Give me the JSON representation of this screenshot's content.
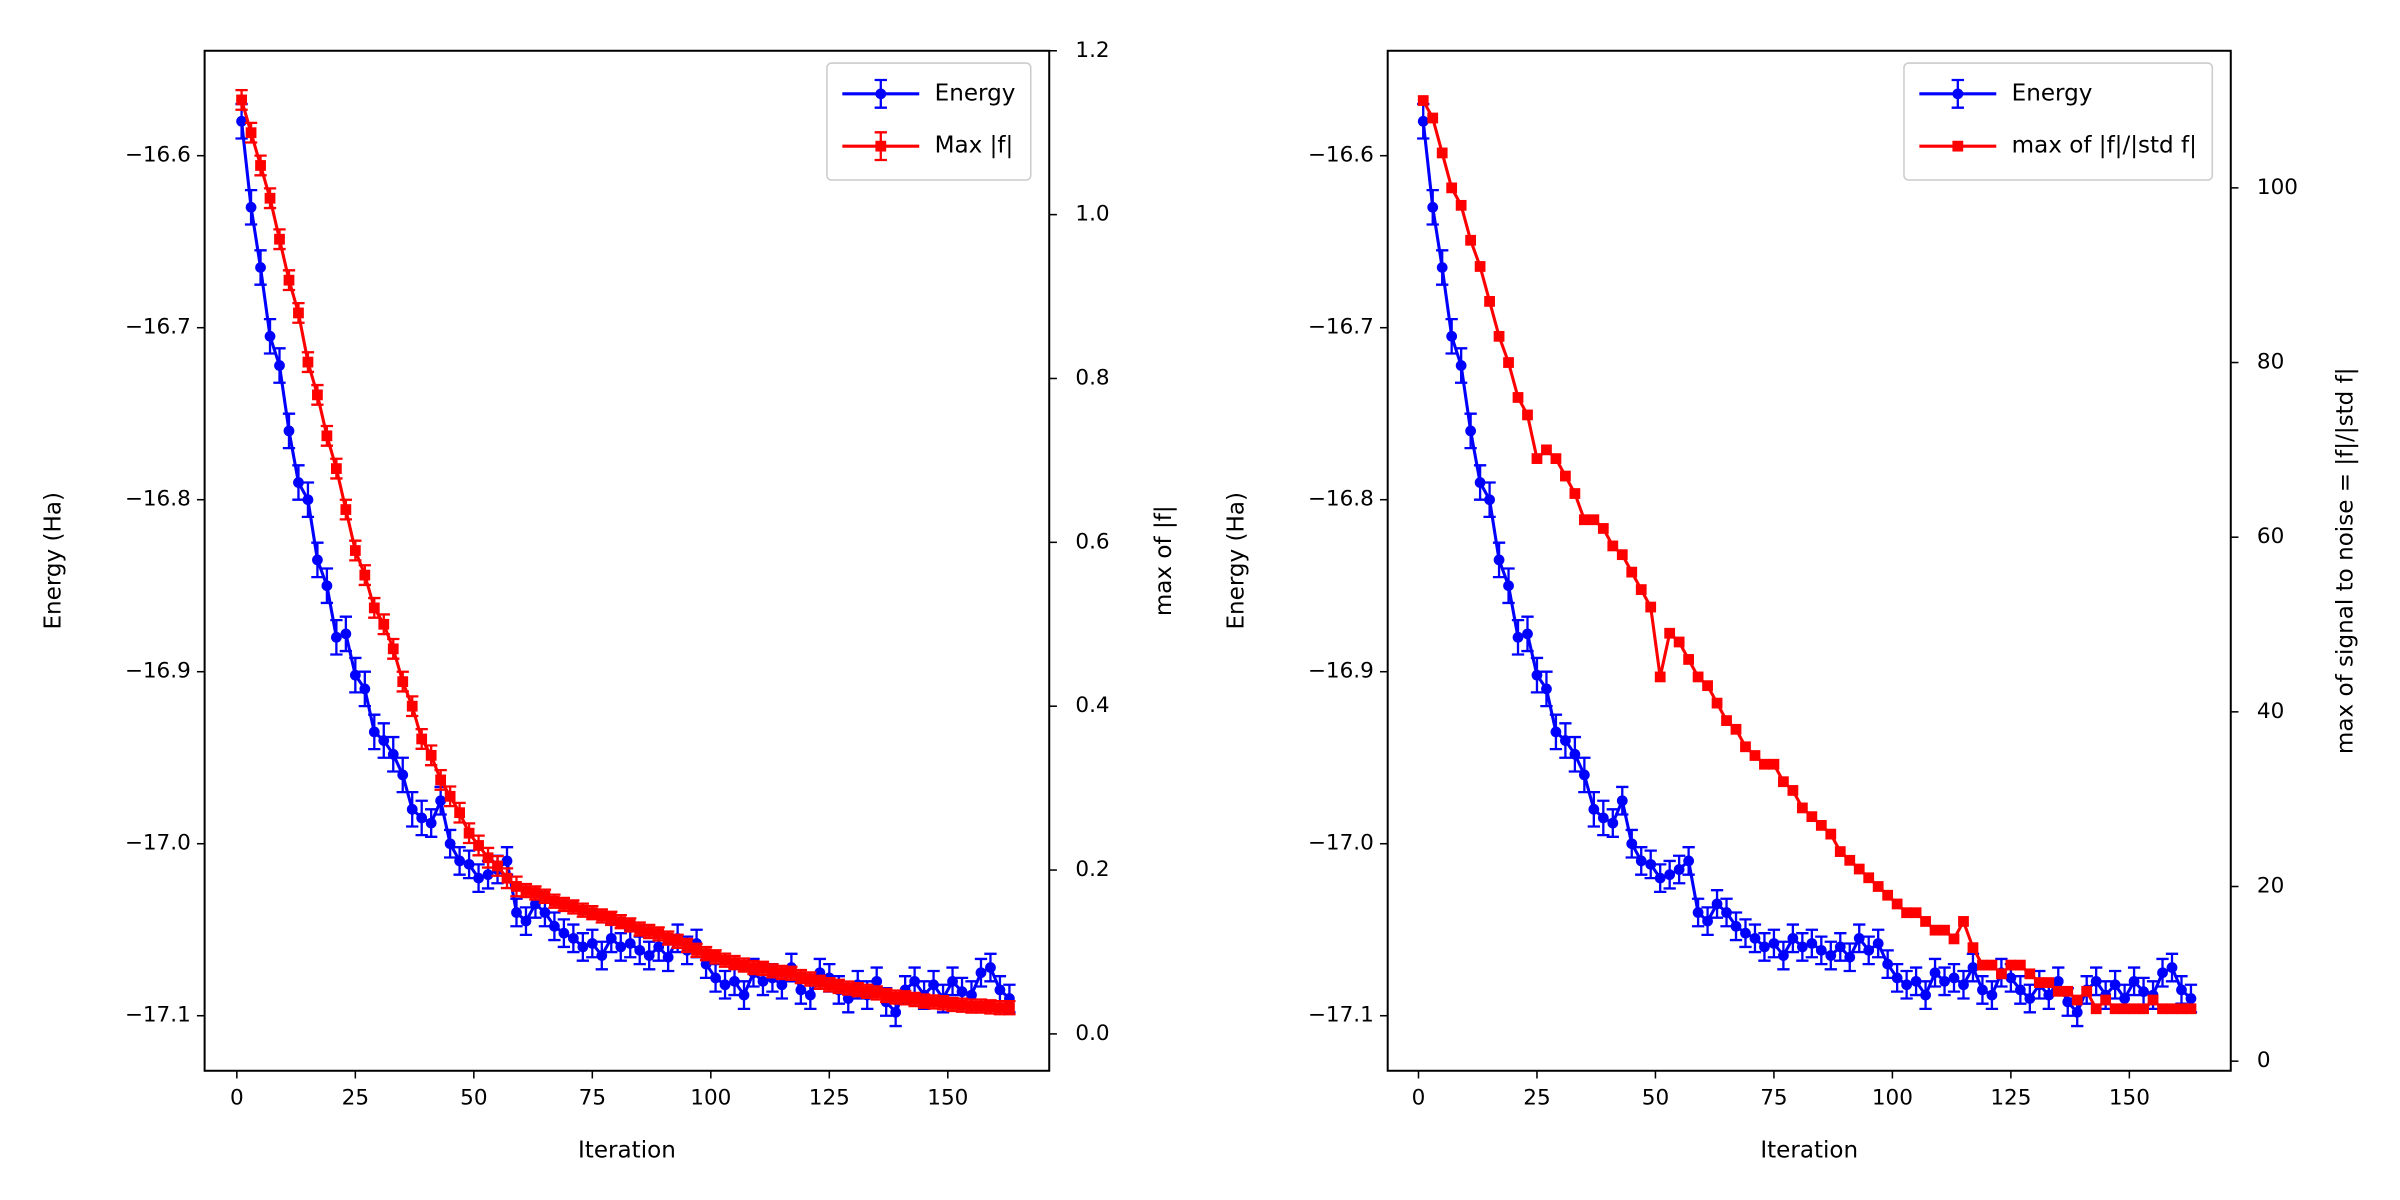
{
  "chart_data": [
    {
      "type": "line",
      "xlabel": "Iteration",
      "ylabel": "Energy (Ha)",
      "y2label": "max of |f|",
      "legend": "upper right",
      "xlim": [
        -6.8,
        171.4
      ],
      "xticks": [
        0,
        25,
        50,
        75,
        100,
        125,
        150
      ],
      "ylim": [
        -17.132,
        -16.539
      ],
      "yticks": [
        {
          "value": -17.1,
          "label": "−17.1"
        },
        {
          "value": -17.0,
          "label": "−17.0"
        },
        {
          "value": -16.9,
          "label": "−16.9"
        },
        {
          "value": -16.8,
          "label": "−16.8"
        },
        {
          "value": -16.7,
          "label": "−16.7"
        },
        {
          "value": -16.6,
          "label": "−16.6"
        }
      ],
      "y2lim": [
        -0.045,
        1.2
      ],
      "y2ticks": [
        {
          "value": 0,
          "label": "0.0"
        },
        0.2,
        0.4,
        0.6,
        0.8,
        {
          "value": 1,
          "label": "1.0"
        },
        1.2
      ],
      "x": [
        1,
        3,
        5,
        7,
        9,
        11,
        13,
        15,
        17,
        19,
        21,
        23,
        25,
        27,
        29,
        31,
        33,
        35,
        37,
        39,
        41,
        43,
        45,
        47,
        49,
        51,
        53,
        55,
        57,
        59,
        61,
        63,
        65,
        67,
        69,
        71,
        73,
        75,
        77,
        79,
        81,
        83,
        85,
        87,
        89,
        91,
        93,
        95,
        97,
        99,
        101,
        103,
        105,
        107,
        109,
        111,
        113,
        115,
        117,
        119,
        121,
        123,
        125,
        127,
        129,
        131,
        133,
        135,
        137,
        139,
        141,
        143,
        145,
        147,
        149,
        151,
        153,
        155,
        157,
        159,
        161,
        163
      ],
      "series": [
        {
          "name": "Energy",
          "color": "#0000ff",
          "marker": "circle",
          "axis": "y",
          "values": [
            -16.58,
            -16.63,
            -16.665,
            -16.705,
            -16.722,
            -16.76,
            -16.79,
            -16.8,
            -16.835,
            -16.85,
            -16.88,
            -16.878,
            -16.902,
            -16.91,
            -16.935,
            -16.94,
            -16.948,
            -16.96,
            -16.98,
            -16.985,
            -16.988,
            -16.975,
            -17.0,
            -17.01,
            -17.012,
            -17.02,
            -17.018,
            -17.015,
            -17.01,
            -17.04,
            -17.045,
            -17.035,
            -17.04,
            -17.048,
            -17.052,
            -17.055,
            -17.06,
            -17.058,
            -17.065,
            -17.055,
            -17.06,
            -17.058,
            -17.062,
            -17.065,
            -17.06,
            -17.066,
            -17.055,
            -17.062,
            -17.058,
            -17.07,
            -17.078,
            -17.082,
            -17.08,
            -17.088,
            -17.075,
            -17.08,
            -17.078,
            -17.082,
            -17.072,
            -17.085,
            -17.088,
            -17.075,
            -17.078,
            -17.085,
            -17.09,
            -17.082,
            -17.088,
            -17.08,
            -17.092,
            -17.098,
            -17.085,
            -17.08,
            -17.088,
            -17.082,
            -17.09,
            -17.08,
            -17.086,
            -17.088,
            -17.075,
            -17.072,
            -17.085,
            -17.09
          ],
          "errors": [
            0.01,
            0.01,
            0.01,
            0.01,
            0.01,
            0.01,
            0.01,
            0.01,
            0.01,
            0.01,
            0.01,
            0.01,
            0.01,
            0.01,
            0.01,
            0.01,
            0.01,
            0.01,
            0.01,
            0.01,
            0.008,
            0.008,
            0.008,
            0.008,
            0.008,
            0.008,
            0.008,
            0.008,
            0.008,
            0.008,
            0.008,
            0.008,
            0.008,
            0.008,
            0.008,
            0.008,
            0.008,
            0.008,
            0.008,
            0.008,
            0.008,
            0.008,
            0.008,
            0.008,
            0.008,
            0.008,
            0.008,
            0.008,
            0.008,
            0.008,
            0.008,
            0.008,
            0.008,
            0.008,
            0.008,
            0.008,
            0.008,
            0.008,
            0.008,
            0.008,
            0.008,
            0.008,
            0.008,
            0.008,
            0.008,
            0.008,
            0.008,
            0.008,
            0.008,
            0.008,
            0.008,
            0.008,
            0.008,
            0.008,
            0.008,
            0.008,
            0.008,
            0.008,
            0.008,
            0.008,
            0.008,
            0.008
          ]
        },
        {
          "name": "Max |f|",
          "color": "#ff0000",
          "marker": "square",
          "axis": "y2",
          "values": [
            1.14,
            1.1,
            1.06,
            1.02,
            0.97,
            0.92,
            0.88,
            0.82,
            0.78,
            0.73,
            0.69,
            0.64,
            0.59,
            0.56,
            0.52,
            0.5,
            0.47,
            0.43,
            0.4,
            0.36,
            0.34,
            0.31,
            0.29,
            0.27,
            0.245,
            0.23,
            0.215,
            0.205,
            0.19,
            0.18,
            0.175,
            0.172,
            0.168,
            0.162,
            0.158,
            0.155,
            0.151,
            0.148,
            0.144,
            0.141,
            0.137,
            0.133,
            0.128,
            0.125,
            0.122,
            0.117,
            0.113,
            0.108,
            0.102,
            0.098,
            0.094,
            0.09,
            0.087,
            0.084,
            0.081,
            0.08,
            0.077,
            0.075,
            0.074,
            0.07,
            0.067,
            0.063,
            0.06,
            0.058,
            0.056,
            0.054,
            0.052,
            0.05,
            0.047,
            0.045,
            0.044,
            0.042,
            0.04,
            0.039,
            0.038,
            0.036,
            0.035,
            0.034,
            0.034,
            0.033,
            0.032,
            0.032
          ],
          "errors": [
            0.012,
            0.012,
            0.012,
            0.012,
            0.012,
            0.012,
            0.012,
            0.012,
            0.012,
            0.012,
            0.012,
            0.012,
            0.012,
            0.012,
            0.012,
            0.012,
            0.012,
            0.012,
            0.012,
            0.012,
            0.012,
            0.012,
            0.012,
            0.012,
            0.012,
            0.012,
            0.012,
            0.012,
            0.012,
            0.012,
            0.008,
            0.008,
            0.008,
            0.008,
            0.008,
            0.008,
            0.008,
            0.008,
            0.008,
            0.008,
            0.008,
            0.008,
            0.008,
            0.008,
            0.008,
            0.008,
            0.008,
            0.008,
            0.008,
            0.008,
            0.008,
            0.008,
            0.008,
            0.008,
            0.008,
            0.008,
            0.008,
            0.008,
            0.008,
            0.008,
            0.008,
            0.008,
            0.008,
            0.008,
            0.008,
            0.008,
            0.008,
            0.008,
            0.008,
            0.008,
            0.008,
            0.008,
            0.008,
            0.008,
            0.008,
            0.008,
            0.008,
            0.008,
            0.008,
            0.008,
            0.008,
            0.008
          ]
        }
      ]
    },
    {
      "type": "line",
      "xlabel": "Iteration",
      "ylabel": "Energy (Ha)",
      "y2label": "max of signal to noise = |f|/|std f|",
      "legend": "upper right",
      "xlim": [
        -6.5,
        171.4
      ],
      "xticks": [
        0,
        25,
        50,
        75,
        100,
        125,
        150
      ],
      "ylim": [
        -17.132,
        -16.539
      ],
      "yticks": [
        {
          "value": -17.1,
          "label": "−17.1"
        },
        {
          "value": -17.0,
          "label": "−17.0"
        },
        {
          "value": -16.9,
          "label": "−16.9"
        },
        {
          "value": -16.8,
          "label": "−16.8"
        },
        {
          "value": -16.7,
          "label": "−16.7"
        },
        {
          "value": -16.6,
          "label": "−16.6"
        }
      ],
      "y2lim": [
        -1.1,
        115.7
      ],
      "y2ticks": [
        0,
        20,
        40,
        60,
        80,
        100
      ],
      "x": [
        1,
        3,
        5,
        7,
        9,
        11,
        13,
        15,
        17,
        19,
        21,
        23,
        25,
        27,
        29,
        31,
        33,
        35,
        37,
        39,
        41,
        43,
        45,
        47,
        49,
        51,
        53,
        55,
        57,
        59,
        61,
        63,
        65,
        67,
        69,
        71,
        73,
        75,
        77,
        79,
        81,
        83,
        85,
        87,
        89,
        91,
        93,
        95,
        97,
        99,
        101,
        103,
        105,
        107,
        109,
        111,
        113,
        115,
        117,
        119,
        121,
        123,
        125,
        127,
        129,
        131,
        133,
        135,
        137,
        139,
        141,
        143,
        145,
        147,
        149,
        151,
        153,
        155,
        157,
        159,
        161,
        163
      ],
      "series": [
        {
          "name": "Energy",
          "color": "#0000ff",
          "marker": "circle",
          "axis": "y",
          "values": [
            -16.58,
            -16.63,
            -16.665,
            -16.705,
            -16.722,
            -16.76,
            -16.79,
            -16.8,
            -16.835,
            -16.85,
            -16.88,
            -16.878,
            -16.902,
            -16.91,
            -16.935,
            -16.94,
            -16.948,
            -16.96,
            -16.98,
            -16.985,
            -16.988,
            -16.975,
            -17.0,
            -17.01,
            -17.012,
            -17.02,
            -17.018,
            -17.015,
            -17.01,
            -17.04,
            -17.045,
            -17.035,
            -17.04,
            -17.048,
            -17.052,
            -17.055,
            -17.06,
            -17.058,
            -17.065,
            -17.055,
            -17.06,
            -17.058,
            -17.062,
            -17.065,
            -17.06,
            -17.066,
            -17.055,
            -17.062,
            -17.058,
            -17.07,
            -17.078,
            -17.082,
            -17.08,
            -17.088,
            -17.075,
            -17.08,
            -17.078,
            -17.082,
            -17.072,
            -17.085,
            -17.088,
            -17.075,
            -17.078,
            -17.085,
            -17.09,
            -17.082,
            -17.088,
            -17.08,
            -17.092,
            -17.098,
            -17.085,
            -17.08,
            -17.088,
            -17.082,
            -17.09,
            -17.08,
            -17.086,
            -17.088,
            -17.075,
            -17.072,
            -17.085,
            -17.09
          ],
          "errors": [
            0.01,
            0.01,
            0.01,
            0.01,
            0.01,
            0.01,
            0.01,
            0.01,
            0.01,
            0.01,
            0.01,
            0.01,
            0.01,
            0.01,
            0.01,
            0.01,
            0.01,
            0.01,
            0.01,
            0.01,
            0.008,
            0.008,
            0.008,
            0.008,
            0.008,
            0.008,
            0.008,
            0.008,
            0.008,
            0.008,
            0.008,
            0.008,
            0.008,
            0.008,
            0.008,
            0.008,
            0.008,
            0.008,
            0.008,
            0.008,
            0.008,
            0.008,
            0.008,
            0.008,
            0.008,
            0.008,
            0.008,
            0.008,
            0.008,
            0.008,
            0.008,
            0.008,
            0.008,
            0.008,
            0.008,
            0.008,
            0.008,
            0.008,
            0.008,
            0.008,
            0.008,
            0.008,
            0.008,
            0.008,
            0.008,
            0.008,
            0.008,
            0.008,
            0.008,
            0.008,
            0.008,
            0.008,
            0.008,
            0.008,
            0.008,
            0.008,
            0.008,
            0.008,
            0.008,
            0.008,
            0.008,
            0.008
          ]
        },
        {
          "name": "max of |f|/|std f|",
          "color": "#ff0000",
          "marker": "square",
          "axis": "y2",
          "values": [
            110,
            108,
            104,
            100,
            98,
            94,
            91,
            87,
            83,
            80,
            76,
            74,
            69,
            70,
            69,
            67,
            65,
            62,
            62,
            61,
            59,
            58,
            56,
            54,
            52,
            44,
            49,
            48,
            46,
            44,
            43,
            41,
            39,
            38,
            36,
            35,
            34,
            34,
            32,
            31,
            29,
            28,
            27,
            26,
            24,
            23,
            22,
            21,
            20,
            19,
            18,
            17,
            17,
            16,
            15,
            15,
            14,
            16,
            13,
            11,
            11,
            10,
            11,
            11,
            10,
            9,
            9,
            8,
            8,
            7,
            8,
            6,
            7,
            6,
            6,
            6,
            6,
            7,
            6,
            6,
            6,
            6
          ]
        }
      ]
    }
  ]
}
